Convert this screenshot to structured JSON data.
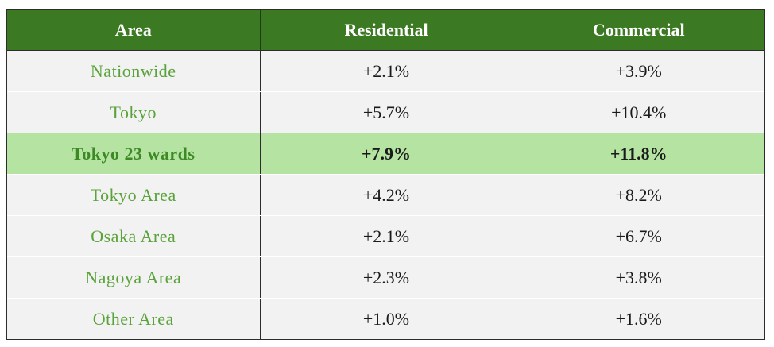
{
  "table": {
    "headers": [
      "Area",
      "Residential",
      "Commercial"
    ],
    "rows": [
      {
        "area": "Nationwide",
        "residential": "+2.1%",
        "commercial": "+3.9%"
      },
      {
        "area": "Tokyo",
        "residential": "+5.7%",
        "commercial": "+10.4%"
      },
      {
        "area": "Tokyo 23 wards",
        "residential": "+7.9%",
        "commercial": "+11.8%"
      },
      {
        "area": "Tokyo Area",
        "residential": "+4.2%",
        "commercial": "+8.2%"
      },
      {
        "area": "Osaka Area",
        "residential": "+2.1%",
        "commercial": "+6.7%"
      },
      {
        "area": "Nagoya Area",
        "residential": "+2.3%",
        "commercial": "+3.8%"
      },
      {
        "area": "Other Area",
        "residential": "+1.0%",
        "commercial": "+1.6%"
      }
    ],
    "highlighted_row": "Tokyo 23 wards"
  },
  "colors": {
    "header_bg": "#3b7a22",
    "row_bg": "#f2f2f2",
    "highlight_bg": "#b4e3a2",
    "area_text": "#5aa23a"
  }
}
